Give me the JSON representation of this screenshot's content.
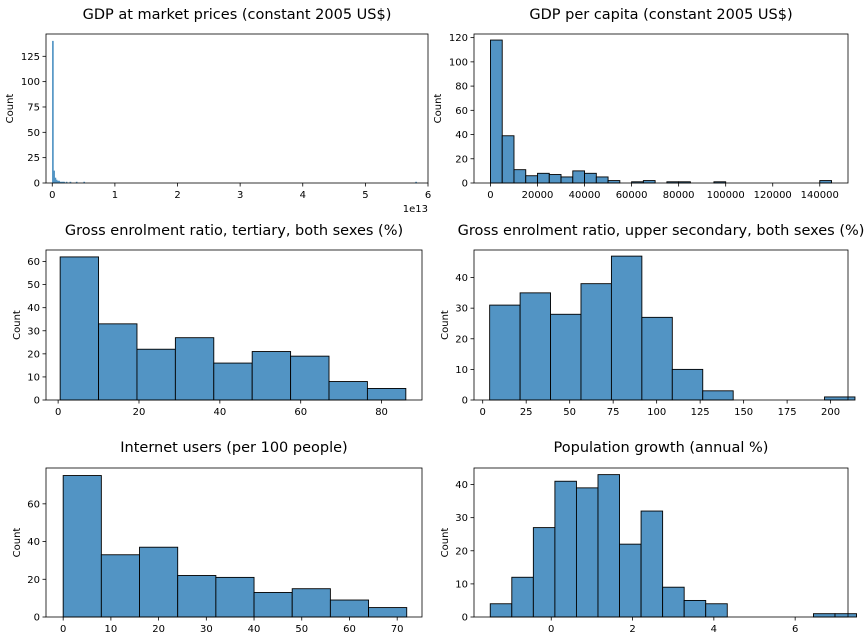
{
  "bar_color": "#5294c4",
  "edge_color": "#000000",
  "chart_data": [
    {
      "type": "bar",
      "title": "GDP at market prices (constant 2005 US$)",
      "ylabel": "Count",
      "x_offset_label": "1e13",
      "xlim": [
        -0.1,
        6.0
      ],
      "ylim": [
        0,
        147
      ],
      "xticks": [
        0,
        1,
        2,
        3,
        4,
        5,
        6
      ],
      "yticks": [
        0,
        25,
        50,
        75,
        100,
        125
      ],
      "bin_width": 0.02,
      "bin_edges_start": 0,
      "values": [
        140,
        12,
        5,
        3,
        2,
        2,
        1,
        1,
        1,
        1,
        0,
        1,
        0,
        0,
        1,
        0,
        0,
        0,
        0,
        1,
        0,
        0,
        0,
        0,
        0,
        1,
        0,
        0,
        0,
        0,
        0,
        0,
        0,
        0,
        0,
        0,
        0,
        0,
        0,
        0,
        0,
        0,
        0,
        0,
        0,
        0,
        0,
        0,
        0,
        0,
        0,
        0,
        0,
        0,
        0,
        0,
        0,
        0,
        0,
        0,
        0,
        0,
        0,
        0,
        0,
        0,
        0,
        0,
        0,
        0,
        0,
        0,
        0,
        0,
        0,
        0,
        0,
        0,
        0,
        0,
        0,
        0,
        0,
        0,
        0,
        0,
        0,
        0,
        0,
        0,
        0,
        0,
        0,
        0,
        0,
        0,
        0,
        0,
        0,
        0,
        0,
        0,
        0,
        0,
        0,
        0,
        0,
        0,
        0,
        0,
        0,
        0,
        0,
        0,
        0,
        0,
        0,
        0,
        0,
        0,
        0,
        0,
        0,
        0,
        0,
        0,
        0,
        0,
        0,
        0,
        0,
        0,
        0,
        0,
        0,
        0,
        0,
        0,
        0,
        0,
        0,
        0,
        0,
        0,
        0,
        0,
        0,
        0,
        0,
        0,
        0,
        0,
        0,
        0,
        0,
        0,
        0,
        0,
        0,
        0,
        0,
        0,
        0,
        0,
        0,
        0,
        0,
        0,
        0,
        0,
        0,
        0,
        0,
        0,
        0,
        0,
        0,
        0,
        0,
        0,
        0,
        0,
        0,
        0,
        0,
        0,
        0,
        0,
        0,
        0,
        0,
        0,
        0,
        0,
        0,
        0,
        0,
        0,
        0,
        0,
        0,
        0,
        0,
        0,
        0,
        0,
        0,
        0,
        0,
        0,
        0,
        0,
        0,
        0,
        0,
        0,
        0,
        0,
        0,
        0,
        0,
        0,
        0,
        0,
        0,
        0,
        0,
        0,
        0,
        0,
        0,
        0,
        0,
        0,
        0,
        0,
        0,
        0,
        0,
        0,
        0,
        0,
        0,
        0,
        0,
        0,
        0,
        0,
        0,
        0,
        0,
        0,
        0,
        0,
        0,
        0,
        0,
        0,
        0,
        0,
        0,
        0,
        0,
        0,
        0,
        0,
        0,
        0,
        0,
        0,
        0,
        0,
        0,
        0,
        0,
        0,
        0,
        0,
        0,
        0,
        0,
        0,
        0,
        0,
        0,
        0,
        0,
        0,
        0,
        0,
        1
      ],
      "grid": false
    },
    {
      "type": "bar",
      "title": "GDP per capita (constant 2005 US$)",
      "ylabel": "Count",
      "xlim": [
        -7000,
        152000
      ],
      "ylim": [
        0,
        123
      ],
      "xticks": [
        0,
        20000,
        40000,
        60000,
        80000,
        100000,
        120000,
        140000
      ],
      "yticks": [
        0,
        20,
        40,
        60,
        80,
        100,
        120
      ],
      "bin_width": 5000,
      "bin_edges_start": 0,
      "values": [
        118,
        39,
        11,
        6,
        8,
        7,
        5,
        10,
        8,
        5,
        2,
        0,
        1,
        2,
        0,
        1,
        1,
        0,
        0,
        1,
        0,
        0,
        0,
        0,
        0,
        0,
        0,
        0,
        2
      ],
      "grid": false
    },
    {
      "type": "bar",
      "title": "Gross enrolment ratio, tertiary, both sexes (%)",
      "ylabel": "Count",
      "xlim": [
        -3,
        90
      ],
      "ylim": [
        0,
        65
      ],
      "xticks": [
        0,
        20,
        40,
        60,
        80
      ],
      "yticks": [
        0,
        10,
        20,
        30,
        40,
        50,
        60
      ],
      "bin_width": 9.5,
      "bin_edges_start": 0.5,
      "values": [
        62,
        33,
        22,
        27,
        16,
        21,
        19,
        8,
        5
      ],
      "grid": false
    },
    {
      "type": "bar",
      "title": "Gross enrolment ratio, upper secondary, both sexes (%)",
      "ylabel": "Count",
      "xlim": [
        -5,
        210
      ],
      "ylim": [
        0,
        49
      ],
      "xticks": [
        0,
        25,
        50,
        75,
        100,
        125,
        150,
        175,
        200
      ],
      "yticks": [
        0,
        10,
        20,
        30,
        40
      ],
      "bin_width": 17.5,
      "bin_edges_start": 4,
      "values": [
        31,
        35,
        28,
        38,
        47,
        27,
        10,
        3,
        0,
        0,
        0,
        1
      ],
      "grid": false
    },
    {
      "type": "bar",
      "title": "Internet users (per 100 people)",
      "ylabel": "Count",
      "xlim": [
        -3.6,
        75.2
      ],
      "ylim": [
        0,
        79
      ],
      "xticks": [
        0,
        10,
        20,
        30,
        40,
        50,
        60,
        70
      ],
      "yticks": [
        0,
        20,
        40,
        60
      ],
      "bin_width": 8.0,
      "bin_edges_start": 0,
      "values": [
        75,
        33,
        37,
        22,
        21,
        13,
        15,
        9,
        5
      ],
      "grid": false
    },
    {
      "type": "bar",
      "title": "Population growth (annual %)",
      "ylabel": "Count",
      "xlim": [
        -1.9,
        7.3
      ],
      "ylim": [
        0,
        45
      ],
      "xticks": [
        0,
        2,
        4,
        6
      ],
      "yticks": [
        0,
        10,
        20,
        30,
        40
      ],
      "bin_width": 0.53,
      "bin_edges_start": -1.5,
      "values": [
        4,
        12,
        27,
        41,
        39,
        43,
        22,
        32,
        9,
        5,
        4,
        0,
        0,
        0,
        0,
        1,
        1
      ],
      "grid": false
    }
  ]
}
